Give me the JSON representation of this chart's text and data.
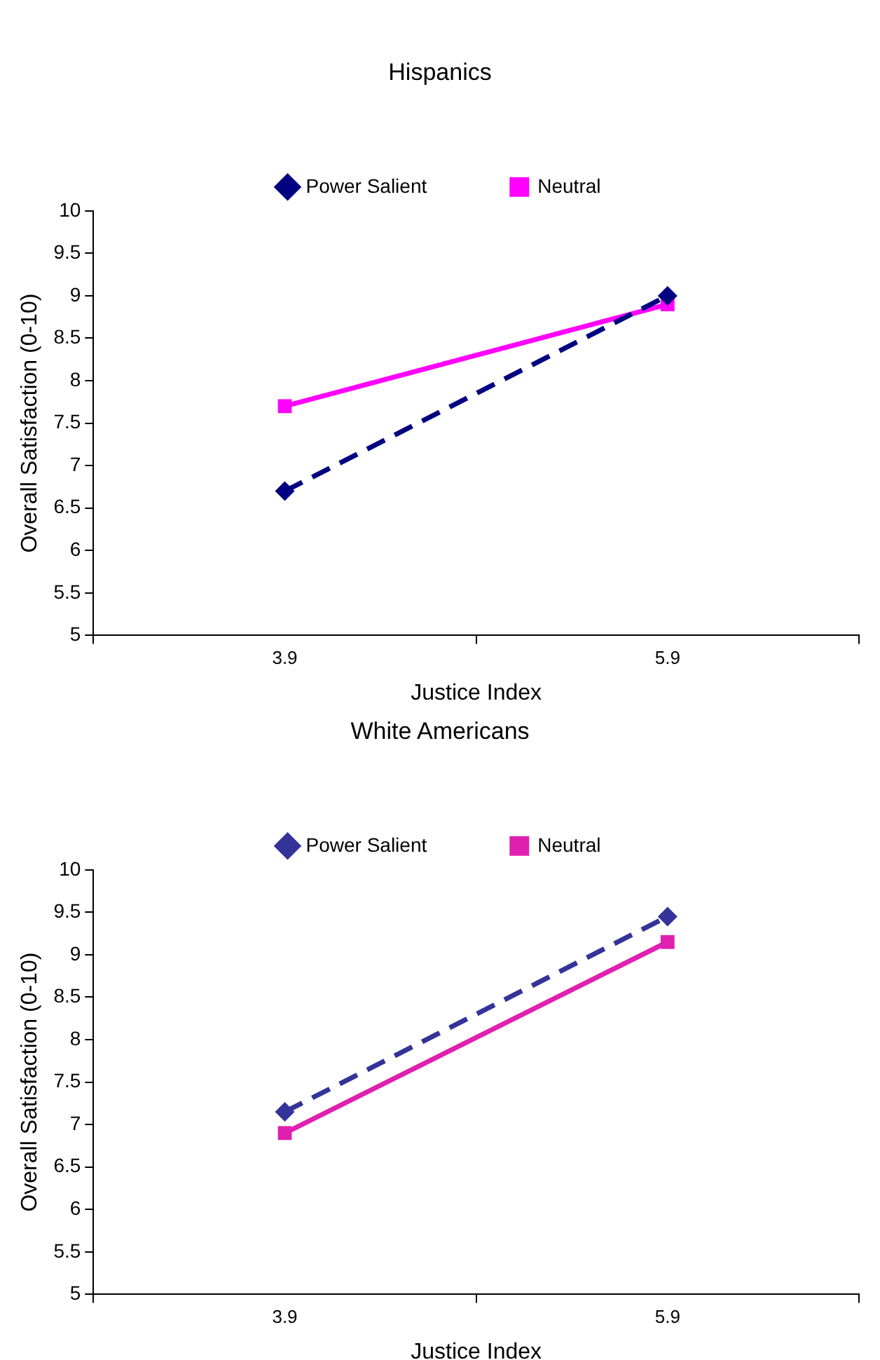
{
  "chart_data": [
    {
      "type": "line",
      "title": "Hispanics",
      "xlabel": "Justice Index",
      "ylabel": "Overall Satisfaction (0-10)",
      "categories": [
        "3.9",
        "5.9"
      ],
      "ylim": [
        5,
        10
      ],
      "yticks": [
        5,
        5.5,
        6,
        6.5,
        7,
        7.5,
        8,
        8.5,
        9,
        9.5,
        10
      ],
      "grid": false,
      "legend": "top",
      "series": [
        {
          "name": "Power Salient",
          "color": "#000080",
          "values": [
            6.7,
            9.0
          ],
          "marker": "diamond",
          "line_style": "dashed"
        },
        {
          "name": "Neutral",
          "color": "#ff00ff",
          "values": [
            7.7,
            8.9
          ],
          "marker": "square",
          "line_style": "solid"
        }
      ]
    },
    {
      "type": "line",
      "title": "White Americans",
      "xlabel": "Justice Index",
      "ylabel": "Overall Satisfaction (0-10)",
      "categories": [
        "3.9",
        "5.9"
      ],
      "ylim": [
        5,
        10
      ],
      "yticks": [
        5,
        5.5,
        6,
        6.5,
        7,
        7.5,
        8,
        8.5,
        9,
        9.5,
        10
      ],
      "grid": false,
      "legend": "top",
      "series": [
        {
          "name": "Power Salient",
          "color": "#333399",
          "values": [
            7.15,
            9.45
          ],
          "marker": "diamond",
          "line_style": "dashed"
        },
        {
          "name": "Neutral",
          "color": "#e020b0",
          "values": [
            6.9,
            9.15
          ],
          "marker": "square",
          "line_style": "solid"
        }
      ]
    }
  ]
}
